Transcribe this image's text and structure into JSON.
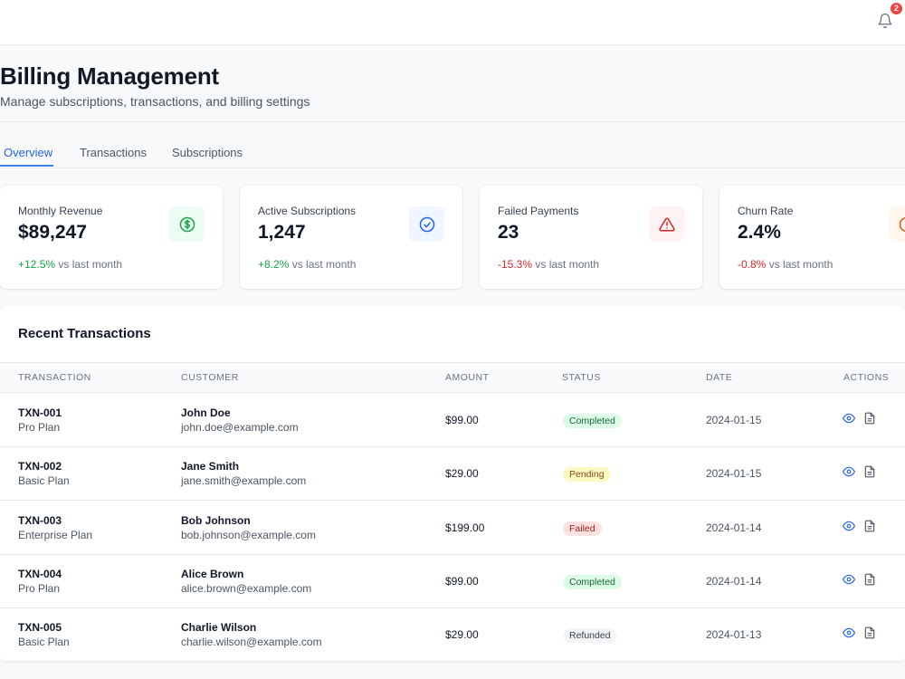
{
  "topbar": {
    "notifications_icon": "bell-icon",
    "notification_count": "2"
  },
  "page": {
    "title": "Billing Management",
    "subtitle": "Manage subscriptions, transactions, and billing settings"
  },
  "tabs": [
    {
      "label": "Overview",
      "active": true
    },
    {
      "label": "Transactions",
      "active": false
    },
    {
      "label": "Subscriptions",
      "active": false
    }
  ],
  "cards": [
    {
      "label": "Monthly Revenue",
      "value": "$89,247",
      "change": "+12.5%",
      "change_suffix": " vs last month",
      "trend": "positive",
      "icon": "dollar-circle-icon",
      "icon_color": "#16a34a",
      "icon_bg": "#ecfdf3"
    },
    {
      "label": "Active Subscriptions",
      "value": "1,247",
      "change": "+8.2%",
      "change_suffix": " vs last month",
      "trend": "positive",
      "icon": "check-circle-icon",
      "icon_color": "#2563eb",
      "icon_bg": "#eff6ff"
    },
    {
      "label": "Failed Payments",
      "value": "23",
      "change": "-15.3%",
      "change_suffix": " vs last month",
      "trend": "negative",
      "icon": "alert-triangle-icon",
      "icon_color": "#dc2626",
      "icon_bg": "#fef2f2"
    },
    {
      "label": "Churn Rate",
      "value": "2.4%",
      "change": "-0.8%",
      "change_suffix": " vs last month",
      "trend": "negative",
      "icon": "clock-icon",
      "icon_color": "#ea580c",
      "icon_bg": "#fff7ed"
    }
  ],
  "transactions": {
    "title": "Recent Transactions",
    "columns": [
      "TRANSACTION",
      "CUSTOMER",
      "AMOUNT",
      "STATUS",
      "DATE",
      "ACTIONS"
    ],
    "rows": [
      {
        "id": "TXN-001",
        "plan": "Pro Plan",
        "name": "John Doe",
        "email": "john.doe@example.com",
        "amount": "$99.00",
        "status": "Completed",
        "date": "2024-01-15"
      },
      {
        "id": "TXN-002",
        "plan": "Basic Plan",
        "name": "Jane Smith",
        "email": "jane.smith@example.com",
        "amount": "$29.00",
        "status": "Pending",
        "date": "2024-01-15"
      },
      {
        "id": "TXN-003",
        "plan": "Enterprise Plan",
        "name": "Bob Johnson",
        "email": "bob.johnson@example.com",
        "amount": "$199.00",
        "status": "Failed",
        "date": "2024-01-14"
      },
      {
        "id": "TXN-004",
        "plan": "Pro Plan",
        "name": "Alice Brown",
        "email": "alice.brown@example.com",
        "amount": "$99.00",
        "status": "Completed",
        "date": "2024-01-14"
      },
      {
        "id": "TXN-005",
        "plan": "Basic Plan",
        "name": "Charlie Wilson",
        "email": "charlie.wilson@example.com",
        "amount": "$29.00",
        "status": "Refunded",
        "date": "2024-01-13"
      }
    ],
    "action_icons": [
      "eye-icon",
      "file-text-icon"
    ],
    "status_colors": {
      "Completed": {
        "bg": "#dcfce7",
        "fg": "#166534"
      },
      "Pending": {
        "bg": "#fef9c3",
        "fg": "#854d0e"
      },
      "Failed": {
        "bg": "#fee2e2",
        "fg": "#991b1b"
      },
      "Refunded": {
        "bg": "#f3f4f6",
        "fg": "#374151"
      }
    }
  }
}
